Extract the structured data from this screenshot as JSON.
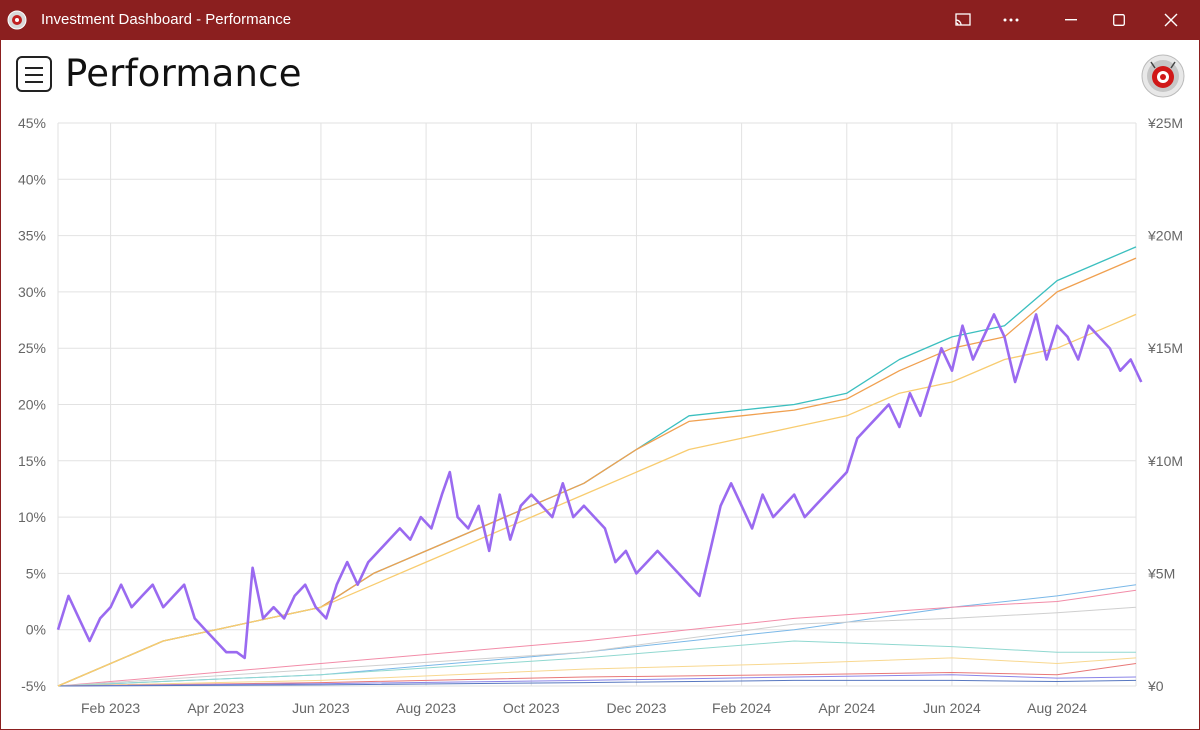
{
  "window": {
    "title": "Investment Dashboard - Performance",
    "controls": [
      "cast-icon",
      "more-icon",
      "minimize-icon",
      "maximize-icon",
      "close-icon"
    ]
  },
  "header": {
    "title": "Performance",
    "menu_icon": "hamburger-menu-icon",
    "avatar_icon": "app-logo-avatar"
  },
  "colors": {
    "titlebar": "#8b1f1f",
    "portfolio_line": "#9a6af0",
    "teal_line": "#3bbfbf",
    "orange_line": "#f0a050",
    "yellow_line": "#f8cc70"
  },
  "chart_data": {
    "type": "line",
    "title": "",
    "x_tick_labels": [
      "Feb 2023",
      "Apr 2023",
      "Jun 2023",
      "Aug 2023",
      "Oct 2023",
      "Dec 2023",
      "Feb 2024",
      "Apr 2024",
      "Jun 2024",
      "Aug 2024"
    ],
    "y_left_ticks": [
      "45%",
      "40%",
      "35%",
      "30%",
      "25%",
      "20%",
      "15%",
      "10%",
      "5%",
      "0%",
      "-5%"
    ],
    "y_left_range": [
      -5,
      45
    ],
    "y_right_ticks": [
      "¥25M",
      "¥20M",
      "¥15M",
      "¥10M",
      "¥5M",
      "¥0"
    ],
    "y_right_range": [
      0,
      25
    ],
    "y_right_unit": "¥M",
    "grid": true,
    "x_range_months": [
      0,
      20.5
    ],
    "x_unit": "months since Jan 2023",
    "series": [
      {
        "key": "portfolio_return",
        "axis": "left",
        "color": "#9a6af0",
        "width": 2.6,
        "points": [
          [
            0,
            0
          ],
          [
            0.2,
            3
          ],
          [
            0.4,
            1
          ],
          [
            0.6,
            -1
          ],
          [
            0.8,
            1
          ],
          [
            1.0,
            2
          ],
          [
            1.2,
            4
          ],
          [
            1.4,
            2
          ],
          [
            1.6,
            3
          ],
          [
            1.8,
            4
          ],
          [
            2.0,
            2
          ],
          [
            2.2,
            3
          ],
          [
            2.4,
            4
          ],
          [
            2.6,
            1
          ],
          [
            2.8,
            0
          ],
          [
            3.0,
            -1
          ],
          [
            3.2,
            -2
          ],
          [
            3.4,
            -2
          ],
          [
            3.55,
            -2.5
          ],
          [
            3.7,
            5.5
          ],
          [
            3.9,
            1
          ],
          [
            4.1,
            2
          ],
          [
            4.3,
            1
          ],
          [
            4.5,
            3
          ],
          [
            4.7,
            4
          ],
          [
            4.9,
            2
          ],
          [
            5.1,
            1
          ],
          [
            5.3,
            4
          ],
          [
            5.5,
            6
          ],
          [
            5.7,
            4
          ],
          [
            5.9,
            6
          ],
          [
            6.1,
            7
          ],
          [
            6.3,
            8
          ],
          [
            6.5,
            9
          ],
          [
            6.7,
            8
          ],
          [
            6.9,
            10
          ],
          [
            7.1,
            9
          ],
          [
            7.3,
            12
          ],
          [
            7.45,
            14
          ],
          [
            7.6,
            10
          ],
          [
            7.8,
            9
          ],
          [
            8.0,
            11
          ],
          [
            8.2,
            7
          ],
          [
            8.4,
            12
          ],
          [
            8.6,
            8
          ],
          [
            8.8,
            11
          ],
          [
            9.0,
            12
          ],
          [
            9.2,
            11
          ],
          [
            9.4,
            10
          ],
          [
            9.6,
            13
          ],
          [
            9.8,
            10
          ],
          [
            10.0,
            11
          ],
          [
            10.2,
            10
          ],
          [
            10.4,
            9
          ],
          [
            10.6,
            6
          ],
          [
            10.8,
            7
          ],
          [
            11.0,
            5
          ],
          [
            11.2,
            6
          ],
          [
            11.4,
            7
          ],
          [
            11.6,
            6
          ],
          [
            11.8,
            5
          ],
          [
            12.0,
            4
          ],
          [
            12.2,
            3
          ],
          [
            12.4,
            7
          ],
          [
            12.6,
            11
          ],
          [
            12.8,
            13
          ],
          [
            13.0,
            11
          ],
          [
            13.2,
            9
          ],
          [
            13.4,
            12
          ],
          [
            13.6,
            10
          ],
          [
            13.8,
            11
          ],
          [
            14.0,
            12
          ],
          [
            14.2,
            10
          ],
          [
            14.4,
            11
          ],
          [
            14.6,
            12
          ],
          [
            14.8,
            13
          ],
          [
            15.0,
            14
          ],
          [
            15.2,
            17
          ],
          [
            15.4,
            18
          ],
          [
            15.6,
            19
          ],
          [
            15.8,
            20
          ],
          [
            16.0,
            18
          ],
          [
            16.2,
            21
          ],
          [
            16.4,
            19
          ],
          [
            16.6,
            22
          ],
          [
            16.8,
            25
          ],
          [
            17.0,
            23
          ],
          [
            17.2,
            27
          ],
          [
            17.4,
            24
          ],
          [
            17.6,
            26
          ],
          [
            17.8,
            28
          ],
          [
            18.0,
            26
          ],
          [
            18.2,
            22
          ],
          [
            18.4,
            25
          ],
          [
            18.6,
            28
          ],
          [
            18.8,
            24
          ],
          [
            19.0,
            27
          ],
          [
            19.2,
            26
          ],
          [
            19.4,
            24
          ],
          [
            19.6,
            27
          ],
          [
            19.8,
            26
          ],
          [
            20.0,
            25
          ],
          [
            20.2,
            23
          ],
          [
            20.4,
            24
          ],
          [
            20.6,
            22
          ]
        ]
      },
      {
        "key": "teal_benchmark",
        "axis": "left",
        "color": "#3bbfbf",
        "width": 1.3,
        "points": [
          [
            0,
            -5
          ],
          [
            1,
            -3
          ],
          [
            2,
            -1
          ],
          [
            3,
            0
          ],
          [
            4,
            1
          ],
          [
            5,
            2
          ],
          [
            6,
            5
          ],
          [
            7,
            7
          ],
          [
            8,
            9
          ],
          [
            9,
            11
          ],
          [
            10,
            13
          ],
          [
            11,
            16
          ],
          [
            12,
            19
          ],
          [
            13,
            19.5
          ],
          [
            14,
            20
          ],
          [
            15,
            21
          ],
          [
            16,
            24
          ],
          [
            17,
            26
          ],
          [
            18,
            27
          ],
          [
            19,
            31
          ],
          [
            20,
            33
          ],
          [
            20.5,
            34
          ]
        ]
      },
      {
        "key": "orange_benchmark",
        "axis": "left",
        "color": "#f0a050",
        "width": 1.3,
        "points": [
          [
            0,
            -5
          ],
          [
            1,
            -3
          ],
          [
            2,
            -1
          ],
          [
            3,
            0
          ],
          [
            4,
            1
          ],
          [
            5,
            2
          ],
          [
            6,
            5
          ],
          [
            7,
            7
          ],
          [
            8,
            9
          ],
          [
            9,
            11
          ],
          [
            10,
            13
          ],
          [
            11,
            16
          ],
          [
            12,
            18.5
          ],
          [
            13,
            19
          ],
          [
            14,
            19.5
          ],
          [
            15,
            20.5
          ],
          [
            16,
            23
          ],
          [
            17,
            25
          ],
          [
            18,
            26
          ],
          [
            19,
            30
          ],
          [
            20,
            32
          ],
          [
            20.5,
            33
          ]
        ]
      },
      {
        "key": "yellow_benchmark",
        "axis": "left",
        "color": "#f8cc70",
        "width": 1.3,
        "points": [
          [
            0,
            -5
          ],
          [
            1,
            -3
          ],
          [
            2,
            -1
          ],
          [
            3,
            0
          ],
          [
            4,
            1
          ],
          [
            5,
            2
          ],
          [
            6,
            4
          ],
          [
            7,
            6
          ],
          [
            8,
            8
          ],
          [
            9,
            10
          ],
          [
            10,
            12
          ],
          [
            11,
            14
          ],
          [
            12,
            16
          ],
          [
            13,
            17
          ],
          [
            14,
            18
          ],
          [
            15,
            19
          ],
          [
            16,
            21
          ],
          [
            17,
            22
          ],
          [
            18,
            24
          ],
          [
            19,
            25
          ],
          [
            20,
            27
          ],
          [
            20.5,
            28
          ]
        ]
      },
      {
        "key": "holding_blue",
        "axis": "left",
        "color": "#7ab8e8",
        "width": 1,
        "points": [
          [
            0,
            -5
          ],
          [
            5,
            -4
          ],
          [
            10,
            -2
          ],
          [
            14,
            0
          ],
          [
            17,
            2
          ],
          [
            19,
            3
          ],
          [
            20.5,
            4
          ]
        ]
      },
      {
        "key": "holding_pink",
        "axis": "left",
        "color": "#f28ca8",
        "width": 1,
        "points": [
          [
            0,
            -5
          ],
          [
            5,
            -3
          ],
          [
            10,
            -1
          ],
          [
            14,
            1
          ],
          [
            17,
            2
          ],
          [
            19,
            2.5
          ],
          [
            20.5,
            3.5
          ]
        ]
      },
      {
        "key": "holding_gray",
        "axis": "left",
        "color": "#cfcfcf",
        "width": 1,
        "points": [
          [
            0,
            -5
          ],
          [
            5,
            -3.5
          ],
          [
            10,
            -2
          ],
          [
            14,
            0.5
          ],
          [
            17,
            1
          ],
          [
            19,
            1.5
          ],
          [
            20.5,
            2
          ]
        ]
      },
      {
        "key": "holding_teal2",
        "axis": "left",
        "color": "#90d8d0",
        "width": 1,
        "points": [
          [
            0,
            -5
          ],
          [
            5,
            -4
          ],
          [
            10,
            -2.5
          ],
          [
            14,
            -1
          ],
          [
            17,
            -1.5
          ],
          [
            19,
            -2
          ],
          [
            20.5,
            -2
          ]
        ]
      },
      {
        "key": "holding_yellow2",
        "axis": "left",
        "color": "#f8d890",
        "width": 1,
        "points": [
          [
            0,
            -5
          ],
          [
            5,
            -4.5
          ],
          [
            10,
            -3.5
          ],
          [
            14,
            -3
          ],
          [
            17,
            -2.5
          ],
          [
            19,
            -3
          ],
          [
            20.5,
            -2.5
          ]
        ]
      },
      {
        "key": "holding_red2",
        "axis": "left",
        "color": "#e87878",
        "width": 1,
        "points": [
          [
            0,
            -5
          ],
          [
            5,
            -4.7
          ],
          [
            10,
            -4.2
          ],
          [
            14,
            -4
          ],
          [
            17,
            -3.8
          ],
          [
            19,
            -4
          ],
          [
            20.5,
            -3
          ]
        ]
      },
      {
        "key": "holding_purple2",
        "axis": "left",
        "color": "#8b85e8",
        "width": 1,
        "points": [
          [
            0,
            -5
          ],
          [
            5,
            -4.8
          ],
          [
            10,
            -4.5
          ],
          [
            14,
            -4.2
          ],
          [
            17,
            -4
          ],
          [
            19,
            -4.3
          ],
          [
            20.5,
            -4.2
          ]
        ]
      },
      {
        "key": "holding_darkblue",
        "axis": "left",
        "color": "#5878c0",
        "width": 1,
        "points": [
          [
            0,
            -5
          ],
          [
            5,
            -4.9
          ],
          [
            10,
            -4.7
          ],
          [
            14,
            -4.5
          ],
          [
            17,
            -4.5
          ],
          [
            19,
            -4.6
          ],
          [
            20.5,
            -4.5
          ]
        ]
      }
    ]
  }
}
